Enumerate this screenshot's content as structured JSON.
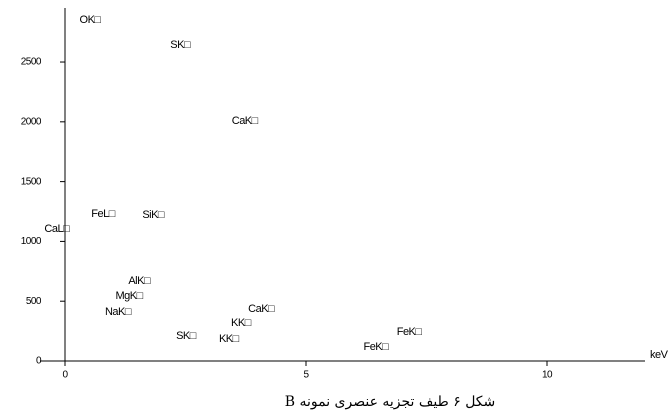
{
  "chart_data": {
    "type": "scatter",
    "caption": "شکل ۶ طیف تجزیه عنصری نمونه B",
    "x_label": "keV",
    "xlim": [
      0,
      12
    ],
    "xticks": [
      0,
      5,
      10
    ],
    "ylim": [
      0,
      2920
    ],
    "yticks": [
      0,
      500,
      1000,
      1500,
      2000,
      2500
    ],
    "points": [
      {
        "label": "OK□",
        "x": 0.52,
        "y": 2851
      },
      {
        "label": "SK□",
        "x": 2.39,
        "y": 2642
      },
      {
        "label": "CaK□",
        "x": 3.73,
        "y": 2007
      },
      {
        "label": "FeL□",
        "x": 0.79,
        "y": 1229
      },
      {
        "label": "SiK□",
        "x": 1.83,
        "y": 1221
      },
      {
        "label": "CaL□",
        "x": -0.17,
        "y": 1104
      },
      {
        "label": "AlK□",
        "x": 1.54,
        "y": 669
      },
      {
        "label": "MgK□",
        "x": 1.33,
        "y": 543
      },
      {
        "label": "NaK□",
        "x": 1.1,
        "y": 410
      },
      {
        "label": "CaK□",
        "x": 4.07,
        "y": 435
      },
      {
        "label": "KK□",
        "x": 3.65,
        "y": 318
      },
      {
        "label": "SK□",
        "x": 2.51,
        "y": 209
      },
      {
        "label": "KK□",
        "x": 3.4,
        "y": 184
      },
      {
        "label": "FeK□",
        "x": 7.14,
        "y": 242
      },
      {
        "label": "FeK□",
        "x": 6.45,
        "y": 117
      }
    ]
  }
}
